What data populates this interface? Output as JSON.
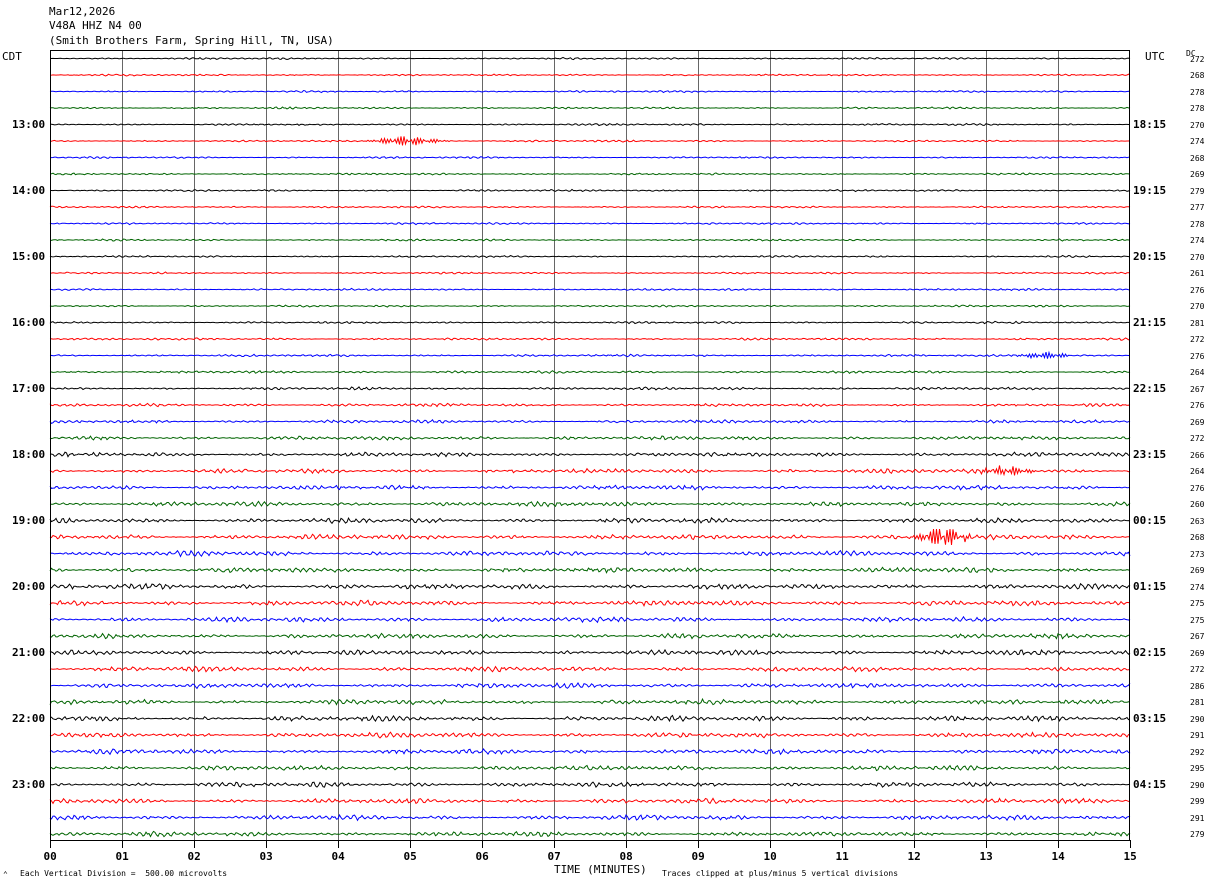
{
  "header": {
    "date": "Mar12,2026",
    "channel": "V48A HHZ N4 00",
    "station": "(Smith Brothers Farm, Spring Hill, TN, USA)"
  },
  "left_tz": "CDT",
  "right_tz": "UTC",
  "dc_label": "DC",
  "footer": {
    "left": "Each Vertical Division =  500.00 microvolts",
    "center": "TIME (MINUTES)",
    "right": "Traces clipped at plus/minus 5 vertical divisions"
  },
  "chart_data": {
    "type": "line",
    "xlabel": "TIME (MINUTES)",
    "xlim": [
      0,
      15
    ],
    "x_ticks": [
      "00",
      "01",
      "02",
      "03",
      "04",
      "05",
      "06",
      "07",
      "08",
      "09",
      "10",
      "11",
      "12",
      "13",
      "14",
      "15"
    ],
    "trace_minutes": 15,
    "trace_count": 48,
    "trace_colors": [
      "#000000",
      "#ff0000",
      "#0000ff",
      "#006400"
    ],
    "left_hour_labels": [
      "13:00",
      "14:00",
      "15:00",
      "16:00",
      "17:00",
      "18:00",
      "19:00",
      "20:00",
      "21:00",
      "22:00",
      "23:00"
    ],
    "right_hour_labels": [
      "18:15",
      "19:15",
      "20:15",
      "21:15",
      "22:15",
      "23:15",
      "00:15",
      "01:15",
      "02:15",
      "03:15",
      "04:15"
    ],
    "dc_offsets": [
      272,
      268,
      278,
      278,
      270,
      274,
      268,
      269,
      279,
      277,
      278,
      274,
      270,
      261,
      276,
      270,
      281,
      272,
      276,
      264,
      267,
      276,
      269,
      272,
      266,
      264,
      276,
      260,
      263,
      268,
      273,
      269,
      274,
      275,
      275,
      267,
      269,
      272,
      286,
      281,
      290,
      291,
      292,
      295,
      290,
      299,
      291,
      279
    ],
    "amplitude_envelope": [
      0.9,
      0.9,
      0.9,
      0.9,
      0.9,
      0.9,
      0.9,
      0.9,
      0.9,
      0.9,
      0.9,
      0.9,
      0.9,
      0.9,
      0.9,
      0.9,
      1.0,
      1.1,
      1.1,
      1.2,
      1.3,
      1.4,
      1.5,
      1.8,
      2.0,
      2.1,
      2.2,
      2.2,
      2.3,
      2.4,
      2.4,
      2.4,
      2.5,
      2.5,
      2.4,
      2.4,
      2.4,
      2.4,
      2.4,
      2.4,
      2.5,
      2.4,
      2.4,
      2.3,
      2.3,
      2.3,
      2.3,
      2.2
    ],
    "events": [
      {
        "trace": 5,
        "minute": 4.8,
        "amplitude": 4
      },
      {
        "trace": 5,
        "minute": 5.15,
        "amplitude": 3
      },
      {
        "trace": 18,
        "minute": 13.8,
        "amplitude": 4
      },
      {
        "trace": 25,
        "minute": 13.3,
        "amplitude": 5
      },
      {
        "trace": 29,
        "minute": 12.4,
        "amplitude": 12
      }
    ]
  }
}
